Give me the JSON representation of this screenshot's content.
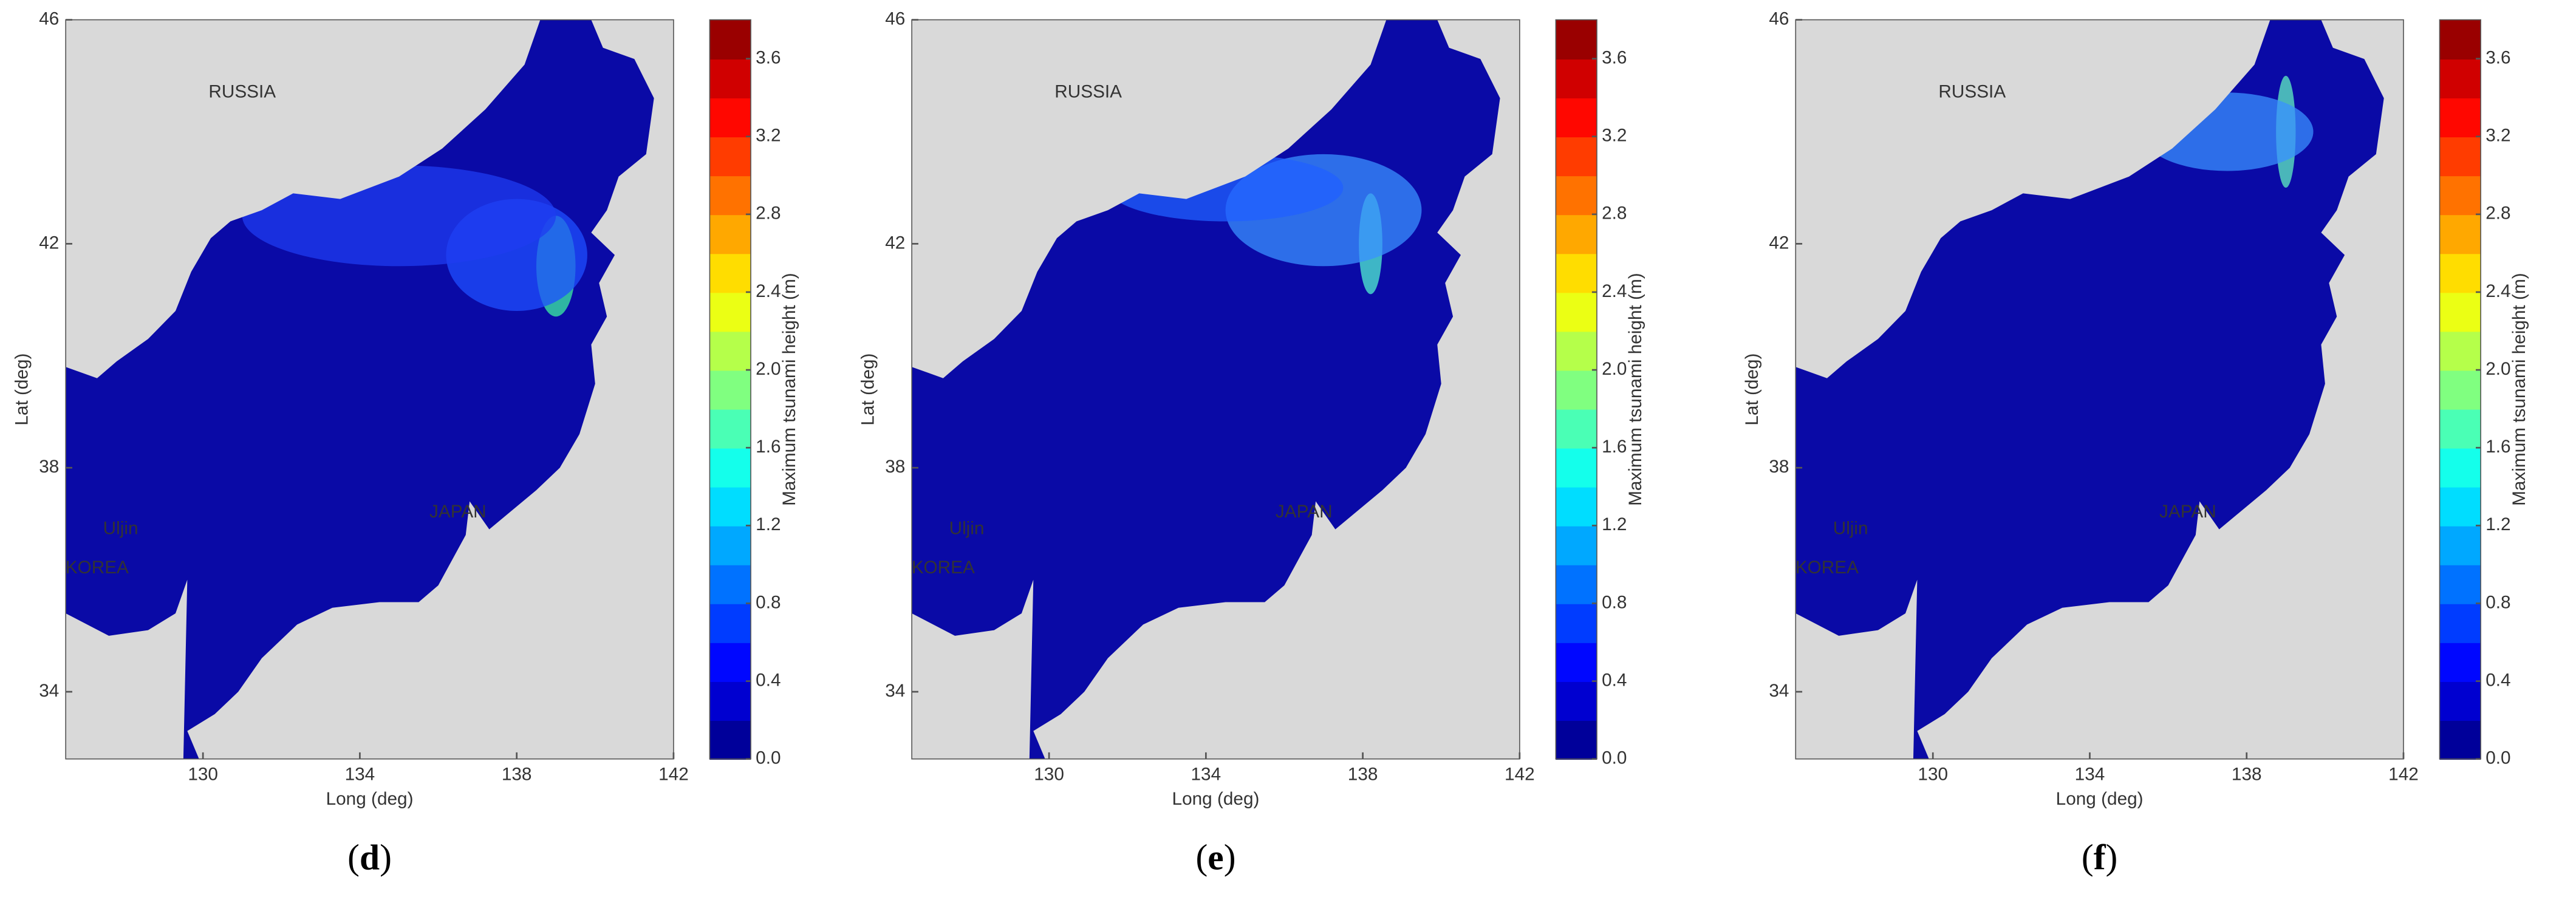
{
  "panels": [
    {
      "label": "(d)",
      "x_label": "Long (deg)",
      "y_label": "Lat (deg)",
      "xlim": [
        126.5,
        142
      ],
      "ylim": [
        32.8,
        46
      ],
      "xticks": [
        130,
        134,
        138,
        142
      ],
      "yticks": [
        34,
        38,
        42,
        46
      ],
      "places": [
        "RUSSIA",
        "JAPAN",
        "KOREA",
        "Uljin"
      ],
      "colorbar": {
        "label": "Maximum tsunami height (m)",
        "lim": [
          0,
          3.8
        ],
        "ticks": [
          {
            "value": 0,
            "label": "0.0"
          },
          {
            "value": 0.4,
            "label": "0.4"
          },
          {
            "value": 0.8,
            "label": "0.8"
          },
          {
            "value": 1.2,
            "label": "1.2"
          },
          {
            "value": 1.6,
            "label": "1.6"
          },
          {
            "value": 2,
            "label": "2.0"
          },
          {
            "value": 2.4,
            "label": "2.4"
          },
          {
            "value": 2.8,
            "label": "2.8"
          },
          {
            "value": 3.2,
            "label": "3.2"
          },
          {
            "value": 3.6,
            "label": "3.6"
          }
        ]
      }
    },
    {
      "label": "(e)",
      "x_label": "Long (deg)",
      "y_label": "Lat (deg)",
      "xlim": [
        126.5,
        142
      ],
      "ylim": [
        32.8,
        46
      ],
      "xticks": [
        130,
        134,
        138,
        142
      ],
      "yticks": [
        34,
        38,
        42,
        46
      ],
      "places": [
        "RUSSIA",
        "JAPAN",
        "KOREA",
        "Uljin"
      ],
      "colorbar": {
        "label": "Maximum tsunami height (m)",
        "lim": [
          0,
          3.8
        ],
        "ticks": [
          {
            "value": 0,
            "label": "0.0"
          },
          {
            "value": 0.4,
            "label": "0.4"
          },
          {
            "value": 0.8,
            "label": "0.8"
          },
          {
            "value": 1.2,
            "label": "1.2"
          },
          {
            "value": 1.6,
            "label": "1.6"
          },
          {
            "value": 2,
            "label": "2.0"
          },
          {
            "value": 2.4,
            "label": "2.4"
          },
          {
            "value": 2.8,
            "label": "2.8"
          },
          {
            "value": 3.2,
            "label": "3.2"
          },
          {
            "value": 3.6,
            "label": "3.6"
          }
        ]
      }
    },
    {
      "label": "(f)",
      "x_label": "Long (deg)",
      "y_label": "Lat (deg)",
      "xlim": [
        126.5,
        142
      ],
      "ylim": [
        32.8,
        46
      ],
      "xticks": [
        130,
        134,
        138,
        142
      ],
      "yticks": [
        34,
        38,
        42,
        46
      ],
      "places": [
        "RUSSIA",
        "JAPAN",
        "KOREA",
        "Uljin"
      ],
      "colorbar": {
        "label": "Maximum tsunami height (m)",
        "lim": [
          0,
          3.8
        ],
        "ticks": [
          {
            "value": 0,
            "label": "0.0"
          },
          {
            "value": 0.4,
            "label": "0.4"
          },
          {
            "value": 0.8,
            "label": "0.8"
          },
          {
            "value": 1.2,
            "label": "1.2"
          },
          {
            "value": 1.6,
            "label": "1.6"
          },
          {
            "value": 2,
            "label": "2.0"
          },
          {
            "value": 2.4,
            "label": "2.4"
          },
          {
            "value": 2.8,
            "label": "2.8"
          },
          {
            "value": 3.2,
            "label": "3.2"
          },
          {
            "value": 3.6,
            "label": "3.6"
          }
        ]
      }
    }
  ]
}
